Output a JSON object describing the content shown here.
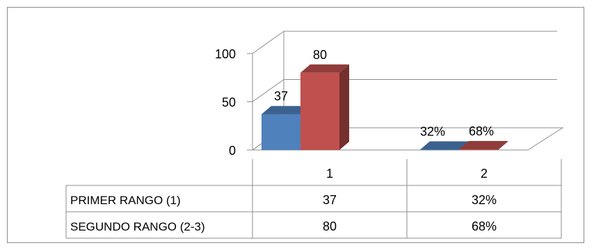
{
  "chart_data": {
    "type": "bar",
    "style": "3d-clustered-column-with-data-table",
    "categories": [
      "1",
      "2"
    ],
    "series": [
      {
        "name": "PRIMER RANGO (1)",
        "values": [
          37,
          0.32
        ],
        "labels": [
          "37",
          "32%"
        ],
        "table_values": [
          "37",
          "32%"
        ],
        "color": "#4f81bd"
      },
      {
        "name": "SEGUNDO RANGO (2-3)",
        "values": [
          80,
          0.68
        ],
        "labels": [
          "80",
          "68%"
        ],
        "table_values": [
          "80",
          "68%"
        ],
        "color": "#c0504d"
      }
    ],
    "ylim": [
      0,
      100
    ],
    "yticks": [
      0,
      50,
      100
    ],
    "grid": true,
    "legend": "data-table"
  }
}
